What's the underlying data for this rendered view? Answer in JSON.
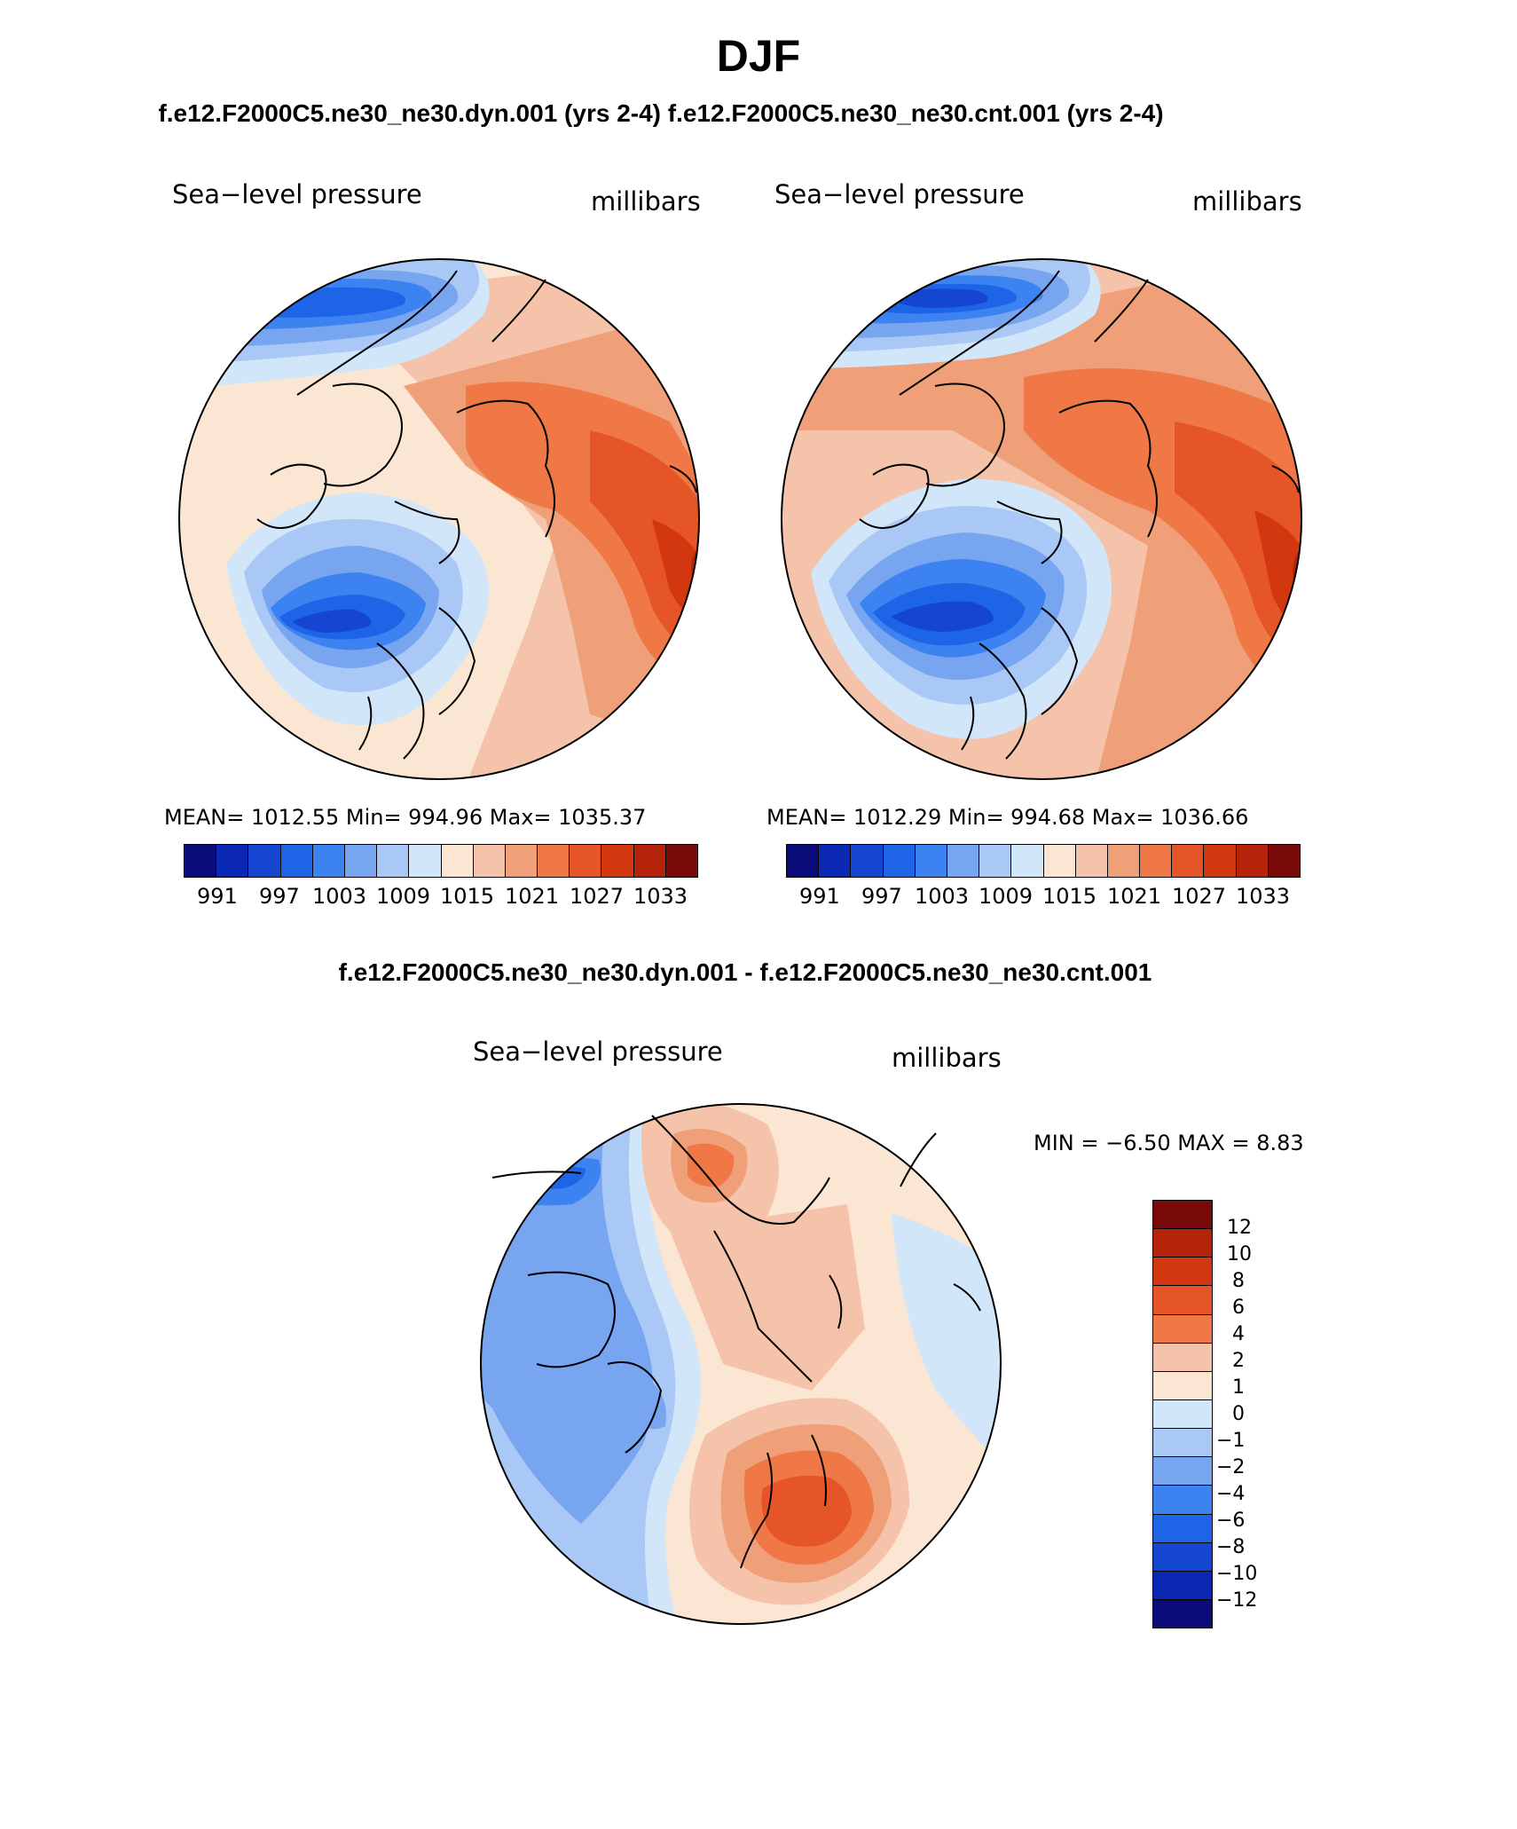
{
  "page": {
    "season": "DJF",
    "case_header": "f.e12.F2000C5.ne30_ne30.dyn.001 (yrs 2-4)  f.e12.F2000C5.ne30_ne30.cnt.001 (yrs 2-4)",
    "diff_header": "f.e12.F2000C5.ne30_ne30.dyn.001 - f.e12.F2000C5.ne30_ne30.cnt.001"
  },
  "panels": [
    {
      "variable": "Sea−level pressure",
      "units": "millibars",
      "stats": "MEAN=  1012.55    Min=  994.96    Max=  1035.37",
      "cbar_labels": [
        "991",
        "997",
        "1003",
        "1009",
        "1015",
        "1021",
        "1027",
        "1033"
      ]
    },
    {
      "variable": "Sea−level pressure",
      "units": "millibars",
      "stats": "MEAN=  1012.29    Min=  994.68    Max=  1036.66",
      "cbar_labels": [
        "991",
        "997",
        "1003",
        "1009",
        "1015",
        "1021",
        "1027",
        "1033"
      ]
    }
  ],
  "diff_panel": {
    "variable": "Sea−level pressure",
    "units": "millibars",
    "minmax": "MIN =    −6.50  MAX =     8.83",
    "cbar_labels": [
      "12",
      "10",
      "8",
      "6",
      "4",
      "2",
      "1",
      "0",
      "−1",
      "−2",
      "−4",
      "−6",
      "−8",
      "−10",
      "−12"
    ]
  },
  "colors": {
    "abs_scale": [
      "#0a0a78",
      "#0a28b4",
      "#1446d2",
      "#1e64e6",
      "#3c82f0",
      "#78a5f0",
      "#aac8f5",
      "#d2e6fa",
      "#fae6d2",
      "#f5c3aa",
      "#f0a078",
      "#f07846",
      "#e65528",
      "#d2370f",
      "#b4230a",
      "#780a0a"
    ],
    "diff_scale": [
      "#780a0a",
      "#b4230a",
      "#d2370f",
      "#e65528",
      "#f07846",
      "#f5c3aa",
      "#fae6d2",
      "#d2e6fa",
      "#aac8f5",
      "#78a5f0",
      "#3c82f0",
      "#1e64e6",
      "#1446d2",
      "#0a28b4",
      "#0a0a78"
    ]
  }
}
